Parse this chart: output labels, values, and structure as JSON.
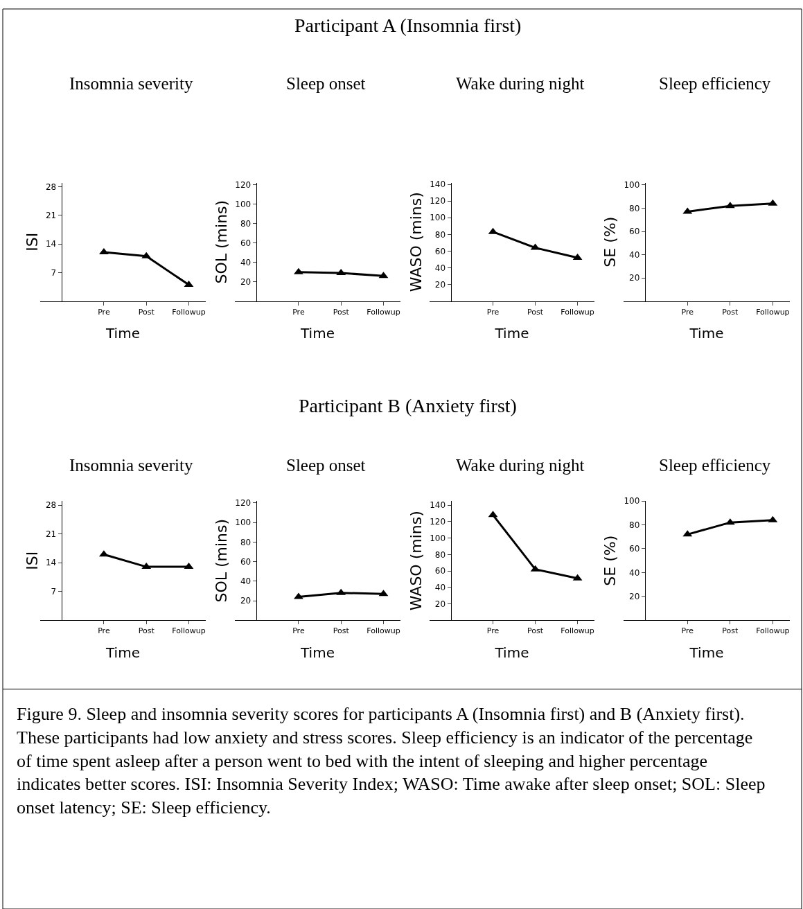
{
  "chart_data": [
    {
      "type": "line",
      "title": "Insomnia severity",
      "xlabel": "Time",
      "ylabel": "ISI",
      "categories": [
        "Pre",
        "Post",
        "Followup"
      ],
      "ylim": [
        0,
        29
      ],
      "yticks": [
        7,
        14,
        21,
        28
      ],
      "series": [
        {
          "color": "#000000",
          "values": [
            12,
            11,
            4
          ]
        }
      ],
      "marker": "triangle",
      "line_style": "solid",
      "annotations": [
        "Participant A (Insomnia first)"
      ]
    },
    {
      "type": "line",
      "title": "Sleep onset",
      "xlabel": "Time",
      "ylabel": "SOL (mins)",
      "categories": [
        "Pre",
        "Post",
        "Followup"
      ],
      "ylim": [
        0,
        122
      ],
      "yticks": [
        20,
        40,
        60,
        80,
        100,
        120
      ],
      "series": [
        {
          "color": "#000000",
          "values": [
            30,
            29,
            26
          ]
        }
      ],
      "marker": "triangle",
      "line_style": "solid"
    },
    {
      "type": "line",
      "title": "Wake during night",
      "xlabel": "Time",
      "ylabel": "WASO (mins)",
      "categories": [
        "Pre",
        "Post",
        "Followup"
      ],
      "ylim": [
        0,
        142
      ],
      "yticks": [
        20,
        40,
        60,
        80,
        100,
        120,
        140
      ],
      "series": [
        {
          "color": "#000000",
          "values": [
            83,
            64,
            52
          ]
        }
      ],
      "marker": "triangle",
      "line_style": "solid"
    },
    {
      "type": "line",
      "title": "Sleep efficiency",
      "xlabel": "Time",
      "ylabel": "SE (%)",
      "categories": [
        "Pre",
        "Post",
        "Followup"
      ],
      "ylim": [
        0,
        102
      ],
      "yticks": [
        20,
        40,
        60,
        80,
        100
      ],
      "series": [
        {
          "color": "#000000",
          "values": [
            77,
            82,
            84
          ]
        }
      ],
      "marker": "triangle",
      "line_style": "solid"
    },
    {
      "type": "line",
      "title": "Insomnia severity",
      "xlabel": "Time",
      "ylabel": "ISI",
      "categories": [
        "Pre",
        "Post",
        "Followup"
      ],
      "ylim": [
        0,
        29
      ],
      "yticks": [
        7,
        14,
        21,
        28
      ],
      "series": [
        {
          "color": "#000000",
          "values": [
            16,
            13,
            13
          ]
        }
      ],
      "marker": "triangle",
      "line_style": "solid",
      "annotations": [
        "Participant B (Anxiety first)"
      ]
    },
    {
      "type": "line",
      "title": "Sleep onset",
      "xlabel": "Time",
      "ylabel": "SOL (mins)",
      "categories": [
        "Pre",
        "Post",
        "Followup"
      ],
      "ylim": [
        0,
        122
      ],
      "yticks": [
        20,
        40,
        60,
        80,
        100,
        120
      ],
      "series": [
        {
          "color": "#000000",
          "values": [
            24,
            28,
            27
          ]
        }
      ],
      "marker": "triangle",
      "line_style": "solid"
    },
    {
      "type": "line",
      "title": "Wake during night",
      "xlabel": "Time",
      "ylabel": "WASO (mins)",
      "categories": [
        "Pre",
        "Post",
        "Followup"
      ],
      "ylim": [
        0,
        145
      ],
      "yticks": [
        20,
        40,
        60,
        80,
        100,
        120,
        140
      ],
      "series": [
        {
          "color": "#000000",
          "values": [
            128,
            62,
            51
          ]
        }
      ],
      "marker": "triangle",
      "line_style": "solid"
    },
    {
      "type": "line",
      "title": "Sleep efficiency",
      "xlabel": "Time",
      "ylabel": "SE (%)",
      "categories": [
        "Pre",
        "Post",
        "Followup"
      ],
      "ylim": [
        0,
        100
      ],
      "yticks": [
        20,
        40,
        60,
        80,
        100
      ],
      "series": [
        {
          "color": "#000000",
          "values": [
            72,
            82,
            84
          ]
        }
      ],
      "marker": "triangle",
      "line_style": "solid",
      "annotations": [
        "Figure 9. Sleep and insomnia severity scores for participants A (Insomnia first) and B (Anxiety first). These participants had low anxiety and stress scores. Sleep efficiency is an indicator of the percentage of time spent asleep after a person went to bed with the intent of sleeping and higher percentage indicates better scores. ISI: Insomnia Severity Index; WASO: Time awake after sleep onset; SOL: Sleep onset latency; SE: Sleep efficiency."
      ]
    }
  ]
}
